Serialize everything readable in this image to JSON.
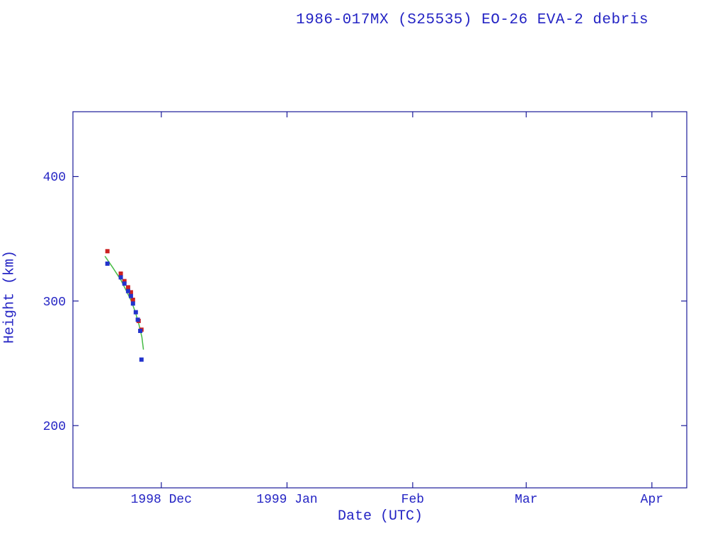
{
  "colors": {
    "text_blue": "#2424c4",
    "axis_blue": "#1a1a99",
    "apogee_red": "#cc2222",
    "perigee_blue": "#2233cc",
    "fit_green": "#44bb44",
    "background": "#ffffff"
  },
  "chart_data": {
    "type": "scatter",
    "title": "1986-017MX (S25535) EO-26 EVA-2 debris",
    "xlabel": "Date (UTC)",
    "ylabel": "Height (km)",
    "x_unit": "days since 1998-12-01",
    "xlim": [
      -21.8,
      129.6
    ],
    "ylim": [
      150,
      452
    ],
    "grid": false,
    "legend": "none",
    "x_ticks": [
      {
        "value": 0,
        "label": "1998 Dec"
      },
      {
        "value": 31,
        "label": "1999 Jan"
      },
      {
        "value": 62,
        "label": "Feb"
      },
      {
        "value": 90,
        "label": "Mar"
      },
      {
        "value": 121,
        "label": "Apr"
      }
    ],
    "y_ticks": [
      {
        "value": 200,
        "label": "200"
      },
      {
        "value": 300,
        "label": "300"
      },
      {
        "value": 400,
        "label": "400"
      }
    ],
    "series": [
      {
        "name": "decay-fit-line",
        "kind": "line",
        "color_key": "fit_green",
        "points": [
          [
            -13.9,
            336
          ],
          [
            -12.0,
            327
          ],
          [
            -10.0,
            317
          ],
          [
            -8.6,
            308
          ],
          [
            -7.4,
            300
          ],
          [
            -6.4,
            291
          ],
          [
            -5.5,
            281
          ],
          [
            -4.8,
            271
          ],
          [
            -4.4,
            261
          ]
        ]
      },
      {
        "name": "apogee-height",
        "kind": "scatter",
        "marker": "square",
        "color_key": "apogee_red",
        "points": [
          [
            -13.3,
            340
          ],
          [
            -10.0,
            322
          ],
          [
            -9.1,
            316
          ],
          [
            -8.2,
            311
          ],
          [
            -7.5,
            307
          ],
          [
            -7.0,
            301
          ],
          [
            -5.6,
            284
          ],
          [
            -4.9,
            277
          ]
        ]
      },
      {
        "name": "perigee-height",
        "kind": "scatter",
        "marker": "square",
        "color_key": "perigee_blue",
        "points": [
          [
            -13.3,
            330
          ],
          [
            -10.0,
            319
          ],
          [
            -9.1,
            314
          ],
          [
            -8.2,
            308
          ],
          [
            -7.5,
            304
          ],
          [
            -7.0,
            298
          ],
          [
            -6.3,
            291
          ],
          [
            -5.8,
            285
          ],
          [
            -5.2,
            276
          ],
          [
            -4.9,
            253
          ]
        ]
      }
    ]
  }
}
